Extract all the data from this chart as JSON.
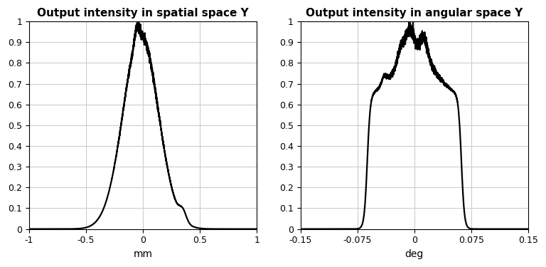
{
  "plot1": {
    "title": "Output intensity in spatial space Y",
    "xlabel": "mm",
    "xlim": [
      -1,
      1
    ],
    "ylim": [
      0,
      1
    ],
    "xticks": [
      -1,
      -0.5,
      0,
      0.5,
      1
    ],
    "yticks": [
      0,
      0.1,
      0.2,
      0.3,
      0.4,
      0.5,
      0.6,
      0.7,
      0.8,
      0.9,
      1
    ]
  },
  "plot2": {
    "title": "Output intensity in angular space Y",
    "xlabel": "deg",
    "xlim": [
      -0.15,
      0.15
    ],
    "ylim": [
      0,
      1
    ],
    "xticks": [
      -0.15,
      -0.075,
      0,
      0.075,
      0.15
    ],
    "yticks": [
      0,
      0.1,
      0.2,
      0.3,
      0.4,
      0.5,
      0.6,
      0.7,
      0.8,
      0.9,
      1
    ]
  },
  "line_color": "#000000",
  "line_width": 1.6,
  "grid_color": "#c8c8c8",
  "bg_color": "#ffffff",
  "title_fontsize": 11,
  "label_fontsize": 10
}
